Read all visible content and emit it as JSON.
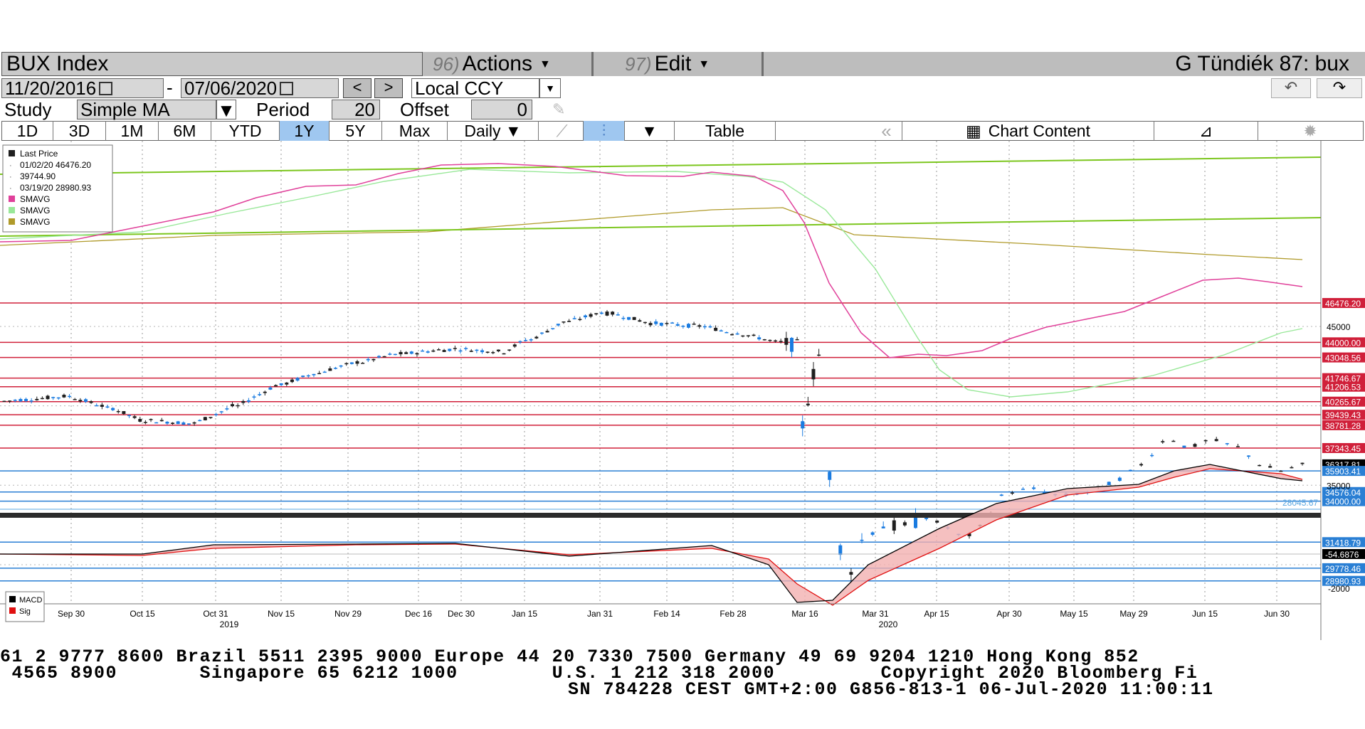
{
  "header": {
    "security": "BUX Index",
    "actions_num": "96)",
    "actions_label": "Actions",
    "edit_num": "97)",
    "edit_label": "Edit",
    "user": "G Tündiék 87: bux"
  },
  "range": {
    "start": "11/20/2016",
    "end": "07/06/2020",
    "dash": "-",
    "prev": "<",
    "next": ">",
    "currency": "Local CCY",
    "undo_icon": "undo-icon",
    "redo_icon": "redo-icon"
  },
  "study": {
    "label": "Study",
    "value": "Simple MA",
    "period_label": "Period",
    "period_value": "20",
    "offset_label": "Offset",
    "offset_value": "0"
  },
  "tabs": {
    "t1D": "1D",
    "t3D": "3D",
    "t1M": "1M",
    "t6M": "6M",
    "tYTD": "YTD",
    "t1Y": "1Y",
    "t5Y": "5Y",
    "tMax": "Max",
    "frequency": "Daily",
    "table": "Table",
    "rewind": "«",
    "chart_content": "Chart Content",
    "active": "1Y"
  },
  "legend": {
    "last_price": "Last Price",
    "high": "01/02/20 46476.20",
    "avg": "39744.90",
    "low": "03/19/20 28980.93",
    "sma1": "SMAVG",
    "sma2": "SMAVG",
    "sma3": "SMAVG",
    "macd": "MACD",
    "sig": "Sig"
  },
  "colors": {
    "up": "#1f1f1f",
    "down": "#1a7be0",
    "sma20": "#e0409a",
    "sma50": "#99e899",
    "sma200": "#b09a2a",
    "support": "#2a7fd4",
    "resistance": "#d0203a",
    "trend": "#7cc61e",
    "macd": "#000000",
    "signal": "#e01010"
  },
  "price_labels": [
    {
      "text": "46476.20",
      "kind": "red"
    },
    {
      "text": "44000.00",
      "kind": "red"
    },
    {
      "text": "43048.56",
      "kind": "red"
    },
    {
      "text": "41746.67",
      "kind": "red"
    },
    {
      "text": "41206.53",
      "kind": "red"
    },
    {
      "text": "40265.67",
      "kind": "red"
    },
    {
      "text": "39439.43",
      "kind": "red"
    },
    {
      "text": "38781.28",
      "kind": "red"
    },
    {
      "text": "37343.45",
      "kind": "red"
    },
    {
      "text": "36317.81",
      "kind": "black"
    },
    {
      "text": "35903.41",
      "kind": "blue"
    },
    {
      "text": "34576.04",
      "kind": "blue"
    },
    {
      "text": "34000.00",
      "kind": "blue"
    },
    {
      "text": "31418.79",
      "kind": "blue"
    },
    {
      "text": "29778.46",
      "kind": "blue"
    },
    {
      "text": "28980.93",
      "kind": "blue"
    }
  ],
  "axis": {
    "y_ticks": [
      "45000",
      "35000"
    ],
    "trend_label": "28045.67",
    "macd_value": "-54.6876",
    "macd_tick": "-2000",
    "x_dates": [
      "Sep 30",
      "Oct 15",
      "Oct 31",
      "Nov 15",
      "Nov 29",
      "Dec 16",
      "Dec 30",
      "Jan 15",
      "Jan 31",
      "Feb 14",
      "Feb 28",
      "Mar 16",
      "Mar 31",
      "Apr 15",
      "Apr 30",
      "May 15",
      "May 29",
      "Jun 15",
      "Jun 30"
    ],
    "year1": "2019",
    "year2": "2020"
  },
  "footer": {
    "line1": "61 2 9777 8600 Brazil 5511 2395 9000 Europe 44 20 7330 7500 Germany 49 69 9204 1210 Hong Kong 852",
    "line2": " 4565 8900       Singapore 65 6212 1000        U.S. 1 212 318 2000         Copyright 2020 Bloomberg Fi",
    "line3": "SN 784228 CEST GMT+2:00 G856-813-1 06-Jul-2020 11:00:11"
  }
}
